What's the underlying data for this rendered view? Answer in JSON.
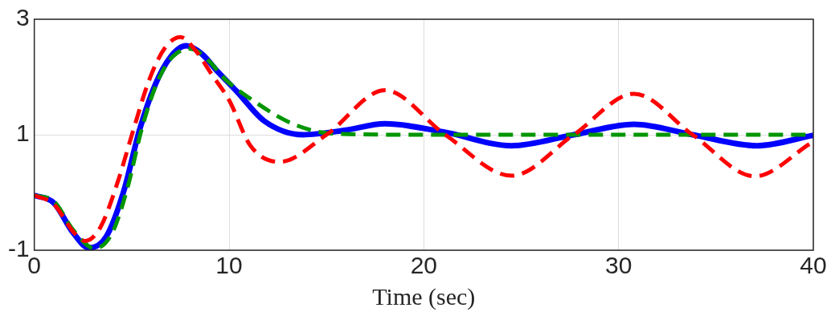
{
  "chart_data": {
    "type": "line",
    "xlabel": "Time (sec)",
    "xlim": [
      0,
      40
    ],
    "xticks": [
      0,
      10,
      20,
      30,
      40
    ],
    "ylim": [
      -1,
      3
    ],
    "yticks": [
      -1,
      1,
      3
    ],
    "grid": true,
    "legend": false,
    "marker": "none",
    "series": [
      {
        "color": "#ff0000",
        "line_style": "dashed",
        "x": [
          0,
          1,
          2,
          2.6,
          3.4,
          4.3,
          5.1,
          5.9,
          6.7,
          7.5,
          8.3,
          9.1,
          10,
          11.1,
          12.6,
          15,
          18,
          21.1,
          24.5,
          27.7,
          30.8,
          33.8,
          37,
          39.9
        ],
        "values": [
          -0.05,
          -0.2,
          -0.68,
          -0.84,
          -0.6,
          0.2,
          1.1,
          1.95,
          2.5,
          2.69,
          2.45,
          2.05,
          1.6,
          0.81,
          0.53,
          1.0,
          1.77,
          1.0,
          0.29,
          1.0,
          1.71,
          1.0,
          0.28,
          0.86
        ]
      },
      {
        "color": "#0000ff",
        "line_style": "solid",
        "x": [
          0,
          1,
          2,
          2.8,
          3.7,
          4.6,
          5.4,
          6.2,
          7,
          7.8,
          8.6,
          9.4,
          10.4,
          11.8,
          13.8,
          16,
          18,
          21,
          24.5,
          27.7,
          30.8,
          33.8,
          37.1,
          40
        ],
        "values": [
          -0.05,
          -0.18,
          -0.7,
          -0.96,
          -0.76,
          0.03,
          1.08,
          1.86,
          2.35,
          2.54,
          2.4,
          2.1,
          1.75,
          1.24,
          1.0,
          1.08,
          1.19,
          1.05,
          0.81,
          1.0,
          1.18,
          1.0,
          0.81,
          0.99
        ]
      },
      {
        "color": "#009600",
        "line_style": "dashed",
        "x": [
          0,
          1,
          2,
          3.1,
          4,
          4.8,
          5.5,
          6.3,
          7.1,
          8,
          8.9,
          9.8,
          11.2,
          13.2,
          15.3,
          20,
          25,
          30,
          35,
          40
        ],
        "values": [
          -0.05,
          -0.15,
          -0.65,
          -0.97,
          -0.7,
          0.1,
          1.08,
          1.9,
          2.35,
          2.49,
          2.3,
          1.96,
          1.6,
          1.2,
          1.02,
          1,
          1,
          1,
          1,
          1
        ]
      }
    ]
  }
}
